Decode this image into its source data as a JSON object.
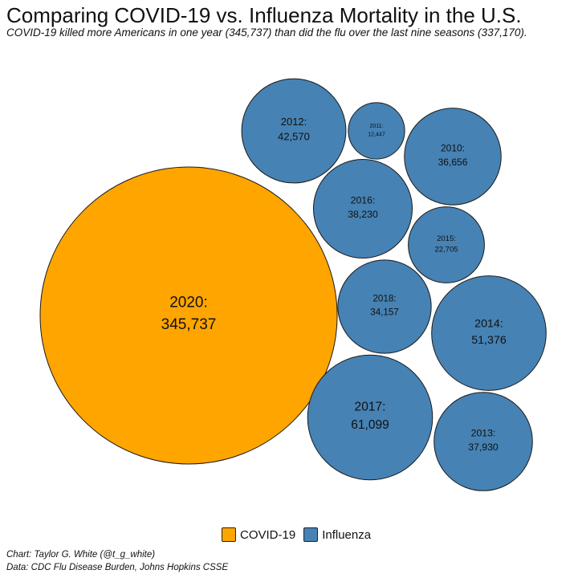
{
  "chart_data": {
    "type": "packed-bubble",
    "title": "Comparing COVID-19 vs. Influenza Mortality in the U.S.",
    "subtitle": "COVID-19 killed more Americans in one year (345,737) than did the flu over the last nine seasons (337,170).",
    "legend": {
      "placement": "bottom",
      "entries": [
        "COVID-19",
        "Influenza"
      ]
    },
    "colors": {
      "COVID-19": "#FFA500",
      "Influenza": "#4682B4"
    },
    "series": [
      {
        "name": "COVID-19",
        "points": [
          {
            "label": "2020:",
            "value_label": "345,737",
            "value": 345737
          }
        ]
      },
      {
        "name": "Influenza",
        "points": [
          {
            "label": "2012:",
            "value_label": "42,570",
            "value": 42570
          },
          {
            "label": "2011:",
            "value_label": "12,447",
            "value": 12447
          },
          {
            "label": "2010:",
            "value_label": "36,656",
            "value": 36656
          },
          {
            "label": "2016:",
            "value_label": "38,230",
            "value": 38230
          },
          {
            "label": "2015:",
            "value_label": "22,705",
            "value": 22705
          },
          {
            "label": "2018:",
            "value_label": "34,157",
            "value": 34157
          },
          {
            "label": "2014:",
            "value_label": "51,376",
            "value": 51376
          },
          {
            "label": "2017:",
            "value_label": "61,099",
            "value": 61099
          },
          {
            "label": "2013:",
            "value_label": "37,930",
            "value": 37930
          }
        ]
      }
    ]
  },
  "credits": {
    "chart": "Chart: Taylor G. White (@t_g_white)",
    "data": "Data: CDC Flu Disease Burden, Johns Hopkins CSSE"
  }
}
